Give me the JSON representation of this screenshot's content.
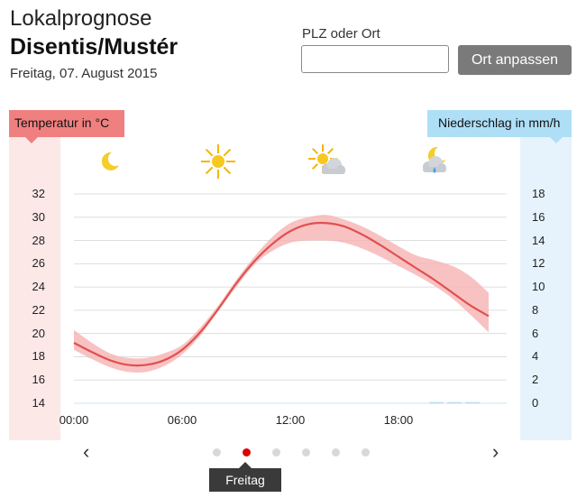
{
  "header": {
    "title_line1": "Lokalprognose",
    "title_line2": "Disentis/Mustér",
    "date": "Freitag, 07. August 2015"
  },
  "location_form": {
    "label": "PLZ oder Ort",
    "input_value": "",
    "button_label": "Ort anpassen"
  },
  "chart_data": {
    "type": "line",
    "left_axis_label": "Temperatur in °C",
    "right_axis_label": "Niederschlag in mm/h",
    "yticks_left": [
      "32",
      "30",
      "28",
      "26",
      "24",
      "22",
      "20",
      "18",
      "16",
      "14"
    ],
    "yticks_right": [
      "18",
      "16",
      "14",
      "12",
      "10",
      "8",
      "6",
      "4",
      "2",
      "0"
    ],
    "ylim_left": [
      14,
      32
    ],
    "ylim_right": [
      0,
      18
    ],
    "xticks": [
      "00:00",
      "06:00",
      "12:00",
      "18:00"
    ],
    "xlim_hours": [
      0,
      24
    ],
    "grid": true,
    "colors": {
      "temperature": "#e05050",
      "temperature_band": "#f6b3b3",
      "precip": "#b8dcf2"
    },
    "temperature": {
      "x": [
        0,
        1,
        2,
        3,
        4,
        5,
        6,
        7,
        8,
        9,
        10,
        11,
        12,
        13,
        14,
        15,
        16,
        17,
        18,
        19,
        20,
        21,
        22,
        23
      ],
      "y": [
        19.2,
        18.4,
        17.7,
        17.3,
        17.3,
        17.7,
        18.6,
        20.1,
        22.1,
        24.3,
        26.2,
        27.7,
        28.8,
        29.4,
        29.5,
        29.2,
        28.5,
        27.6,
        26.6,
        25.6,
        24.6,
        23.5,
        22.4,
        21.5
      ],
      "low": [
        18.6,
        17.8,
        17.1,
        16.7,
        16.7,
        17.2,
        18.2,
        19.8,
        21.9,
        24.0,
        25.9,
        27.1,
        27.8,
        28.0,
        28.0,
        27.8,
        27.3,
        26.6,
        25.8,
        25.0,
        24.1,
        23.0,
        21.6,
        20.1
      ],
      "high": [
        20.3,
        19.2,
        18.3,
        17.9,
        17.9,
        18.3,
        19.0,
        20.5,
        22.4,
        24.6,
        26.6,
        28.3,
        29.5,
        30.0,
        30.2,
        29.8,
        29.2,
        28.4,
        27.5,
        26.7,
        26.3,
        25.8,
        24.9,
        23.5
      ]
    },
    "precipitation": {
      "x": [
        20.1,
        21.1,
        22.1
      ],
      "values": [
        0.1,
        0.1,
        0.1
      ]
    }
  },
  "weather_icons": [
    {
      "hour": 2,
      "icon": "moon-icon"
    },
    {
      "hour": 8,
      "icon": "sun-icon"
    },
    {
      "hour": 14,
      "icon": "sun-cloud-icon"
    },
    {
      "hour": 20,
      "icon": "moon-cloud-rain-icon"
    }
  ],
  "pager": {
    "prev": "‹",
    "next": "›",
    "dots": 6,
    "active_index": 1,
    "active_label": "Freitag"
  }
}
